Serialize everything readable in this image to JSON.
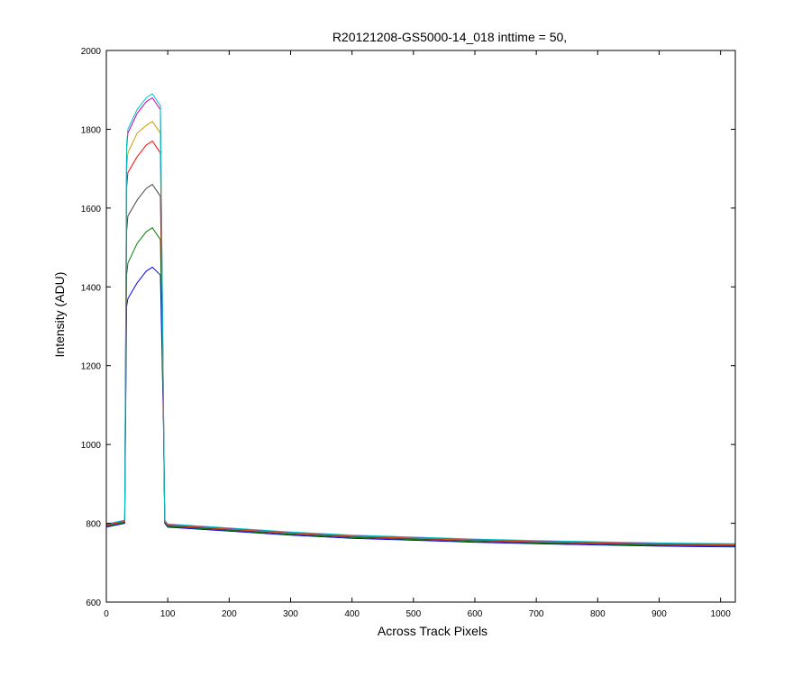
{
  "chart_data": {
    "type": "line",
    "title": "R20121208-GS5000-14_018 inttime = 50,",
    "xlabel": "Across Track Pixels",
    "ylabel": "Intensity (ADU)",
    "xlim": [
      0,
      1024
    ],
    "ylim": [
      600,
      2000
    ],
    "xticks": [
      0,
      100,
      200,
      300,
      400,
      500,
      600,
      700,
      800,
      900,
      1000
    ],
    "yticks": [
      600,
      800,
      1000,
      1200,
      1400,
      1600,
      1800,
      2000
    ],
    "grid": false,
    "legend": "none",
    "series": [
      {
        "color": "#0000ff",
        "x": [
          0,
          30,
          33,
          35,
          50,
          65,
          75,
          88,
          93,
          95,
          100,
          200,
          300,
          400,
          500,
          600,
          700,
          800,
          900,
          1024
        ],
        "y": [
          790,
          800,
          1350,
          1370,
          1410,
          1440,
          1450,
          1430,
          1050,
          800,
          790,
          780,
          770,
          762,
          757,
          752,
          748,
          745,
          742,
          740
        ]
      },
      {
        "color": "#008000",
        "x": [
          0,
          30,
          33,
          35,
          50,
          65,
          75,
          88,
          93,
          95,
          100,
          200,
          300,
          400,
          500,
          600,
          700,
          800,
          900,
          1024
        ],
        "y": [
          792,
          802,
          1430,
          1460,
          1510,
          1540,
          1550,
          1520,
          1060,
          802,
          792,
          782,
          772,
          764,
          759,
          754,
          750,
          747,
          744,
          742
        ]
      },
      {
        "color": "#404040",
        "x": [
          0,
          30,
          33,
          35,
          50,
          65,
          75,
          88,
          93,
          95,
          100,
          200,
          300,
          400,
          500,
          600,
          700,
          800,
          900,
          1024
        ],
        "y": [
          794,
          804,
          1540,
          1580,
          1620,
          1650,
          1660,
          1630,
          1070,
          804,
          794,
          784,
          774,
          766,
          761,
          756,
          752,
          749,
          746,
          744
        ]
      },
      {
        "color": "#ff0000",
        "x": [
          0,
          30,
          33,
          35,
          50,
          65,
          75,
          88,
          93,
          95,
          100,
          200,
          300,
          400,
          500,
          600,
          700,
          800,
          900,
          1024
        ],
        "y": [
          795,
          805,
          1650,
          1690,
          1730,
          1760,
          1770,
          1740,
          1080,
          805,
          795,
          785,
          775,
          767,
          762,
          757,
          753,
          750,
          747,
          745
        ]
      },
      {
        "color": "#c8a000",
        "x": [
          0,
          30,
          33,
          35,
          50,
          65,
          75,
          88,
          93,
          95,
          100,
          200,
          300,
          400,
          500,
          600,
          700,
          800,
          900,
          1024
        ],
        "y": [
          796,
          806,
          1700,
          1740,
          1790,
          1810,
          1820,
          1790,
          1090,
          806,
          796,
          786,
          776,
          768,
          763,
          758,
          754,
          751,
          748,
          746
        ]
      },
      {
        "color": "#bf00bf",
        "x": [
          0,
          30,
          33,
          35,
          50,
          65,
          75,
          88,
          93,
          95,
          100,
          200,
          300,
          400,
          500,
          600,
          700,
          800,
          900,
          1024
        ],
        "y": [
          797,
          807,
          1750,
          1790,
          1840,
          1870,
          1880,
          1850,
          1100,
          807,
          797,
          787,
          777,
          769,
          764,
          759,
          755,
          752,
          749,
          747
        ]
      },
      {
        "color": "#00bfbf",
        "x": [
          0,
          30,
          33,
          35,
          50,
          65,
          75,
          88,
          93,
          95,
          100,
          200,
          300,
          400,
          500,
          600,
          700,
          800,
          900,
          1024
        ],
        "y": [
          798,
          808,
          1760,
          1800,
          1850,
          1880,
          1890,
          1860,
          1110,
          808,
          798,
          788,
          778,
          770,
          765,
          760,
          756,
          753,
          750,
          748
        ]
      }
    ]
  }
}
